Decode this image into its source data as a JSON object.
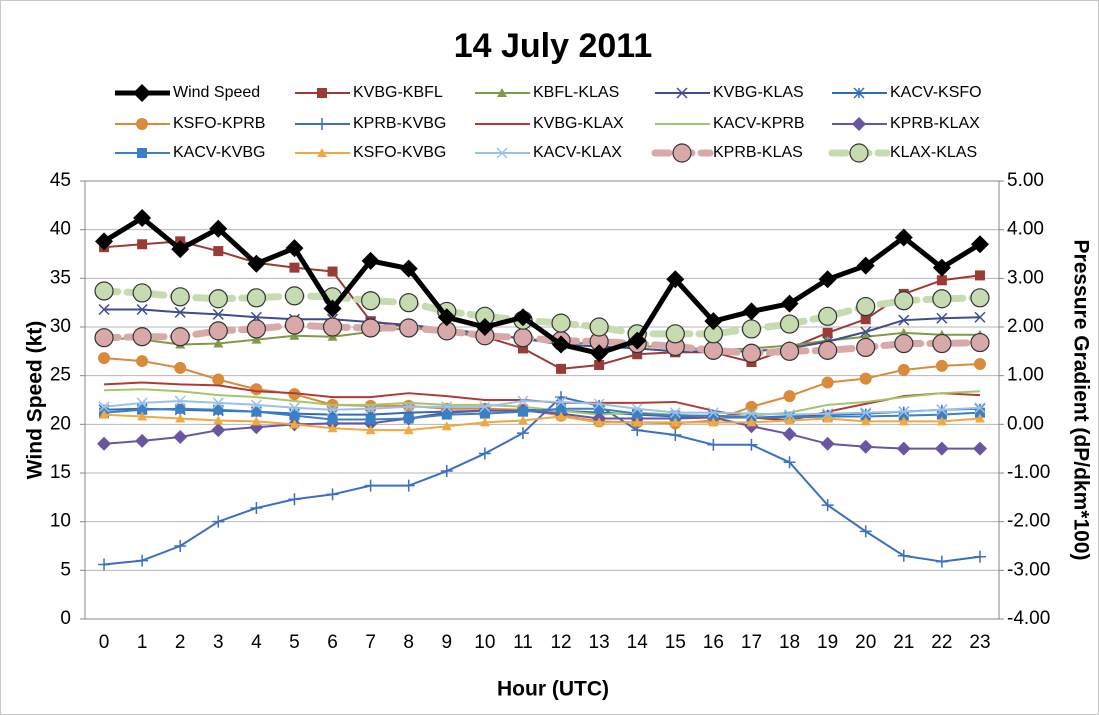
{
  "chart_data": {
    "type": "line",
    "title": "14 July 2011",
    "x_label": "Hour (UTC)",
    "y_label": "Wind Speed (kt)",
    "y2_label": "Pressure Gradient (dP/dkm*100)",
    "categories": [
      "0",
      "1",
      "2",
      "3",
      "4",
      "5",
      "6",
      "7",
      "8",
      "9",
      "10",
      "11",
      "12",
      "13",
      "14",
      "15",
      "16",
      "17",
      "18",
      "19",
      "20",
      "21",
      "22",
      "23"
    ],
    "ylim": [
      0,
      45
    ],
    "yticks": [
      0,
      5,
      10,
      15,
      20,
      25,
      30,
      35,
      40,
      45
    ],
    "y2lim": [
      -4,
      5
    ],
    "y2ticks": [
      {
        "value": 5,
        "label": "5.00"
      },
      {
        "value": 4,
        "label": "4.00"
      },
      {
        "value": 3,
        "label": "3.00"
      },
      {
        "value": 2,
        "label": "2.00"
      },
      {
        "value": 1,
        "label": "1.00"
      },
      {
        "value": 0,
        "label": "0.00"
      },
      {
        "value": -1,
        "label": "-1.00"
      },
      {
        "value": -2,
        "label": "-2.00"
      },
      {
        "value": -3,
        "label": "-3.00"
      },
      {
        "value": -4,
        "label": "-4.00"
      }
    ],
    "grid": true,
    "legend": "top",
    "series": [
      {
        "name": "Wind Speed",
        "color": "#000000",
        "marker": "diamond",
        "width": 5,
        "values": [
          38.8,
          41.2,
          38,
          40.1,
          36.5,
          38.1,
          31.9,
          36.8,
          36,
          31,
          30,
          31,
          28.2,
          27.3,
          28.6,
          34.9,
          30.6,
          31.6,
          32.4,
          34.9,
          36.3,
          39.2,
          36.1,
          38.5
        ]
      },
      {
        "name": "KVBG-KBFL",
        "color": "#9b3b36",
        "marker": "square",
        "width": 2,
        "axis": "y2",
        "values": [
          3.64,
          3.7,
          3.76,
          3.56,
          3.32,
          3.22,
          3.14,
          2.12,
          2.0,
          1.9,
          1.8,
          1.56,
          1.14,
          1.22,
          1.44,
          1.48,
          1.48,
          1.28,
          1.56,
          1.88,
          2.16,
          2.68,
          2.96,
          3.06
        ]
      },
      {
        "name": "KBFL-KLAS",
        "color": "#7f9a48",
        "marker": "triangle",
        "width": 2,
        "axis": "y2",
        "values": [
          1.78,
          1.74,
          1.64,
          1.66,
          1.74,
          1.82,
          1.8,
          1.9,
          1.98,
          1.92,
          1.82,
          1.78,
          1.66,
          1.68,
          1.6,
          1.6,
          1.52,
          1.56,
          1.62,
          1.72,
          1.8,
          1.88,
          1.84,
          1.84
        ]
      },
      {
        "name": "KVBG-KLAS",
        "color": "#3f4c8e",
        "marker": "x",
        "width": 2,
        "axis": "y2",
        "values": [
          2.36,
          2.36,
          2.3,
          2.26,
          2.2,
          2.16,
          2.16,
          2.1,
          2.04,
          1.96,
          1.86,
          1.76,
          1.64,
          1.6,
          1.56,
          1.5,
          1.5,
          1.5,
          1.56,
          1.7,
          1.9,
          2.14,
          2.18,
          2.2
        ]
      },
      {
        "name": "KACV-KSFO",
        "color": "#2e6db5",
        "marker": "asterisk",
        "width": 2,
        "axis": "y2",
        "values": [
          0.3,
          0.32,
          0.3,
          0.28,
          0.26,
          0.22,
          0.2,
          0.2,
          0.24,
          0.26,
          0.28,
          0.3,
          0.28,
          0.24,
          0.2,
          0.16,
          0.14,
          0.14,
          0.16,
          0.2,
          0.22,
          0.26,
          0.3,
          0.32
        ]
      },
      {
        "name": "KSFO-KPRB",
        "color": "#d98a3a",
        "marker": "circle",
        "width": 2,
        "axis": "y2",
        "values": [
          1.36,
          1.3,
          1.16,
          0.92,
          0.72,
          0.62,
          0.4,
          0.38,
          0.38,
          0.32,
          0.32,
          0.3,
          0.18,
          0.06,
          0.04,
          0.02,
          0.08,
          0.36,
          0.58,
          0.86,
          0.94,
          1.12,
          1.2,
          1.24
        ]
      },
      {
        "name": "KPRB-KVBG",
        "color": "#3b6fc0",
        "marker": "plus",
        "width": 2,
        "axis": "y2",
        "values": [
          -2.88,
          -2.8,
          -2.5,
          -2.0,
          -1.72,
          -1.54,
          -1.44,
          -1.26,
          -1.26,
          -0.96,
          -0.6,
          -0.18,
          0.56,
          0.38,
          -0.12,
          -0.22,
          -0.42,
          -0.42,
          -0.78,
          -1.66,
          -2.2,
          -2.7,
          -2.82,
          -2.72
        ]
      },
      {
        "name": "KVBG-KLAX",
        "color": "#b03a36",
        "marker": "none",
        "width": 2,
        "axis": "y2",
        "values": [
          0.82,
          0.86,
          0.82,
          0.8,
          0.68,
          0.64,
          0.56,
          0.56,
          0.64,
          0.58,
          0.5,
          0.5,
          0.44,
          0.44,
          0.44,
          0.46,
          0.28,
          0.14,
          0.08,
          0.26,
          0.42,
          0.58,
          0.64,
          0.6
        ]
      },
      {
        "name": "KACV-KPRB",
        "color": "#a6c46a",
        "marker": "none",
        "width": 2,
        "axis": "y2",
        "values": [
          0.7,
          0.72,
          0.68,
          0.6,
          0.56,
          0.48,
          0.4,
          0.4,
          0.44,
          0.4,
          0.4,
          0.36,
          0.28,
          0.2,
          0.24,
          0.2,
          0.16,
          0.18,
          0.24,
          0.4,
          0.46,
          0.56,
          0.64,
          0.68
        ]
      },
      {
        "name": "KPRB-KLAX",
        "color": "#6a55a0",
        "marker": "diamond",
        "width": 2,
        "axis": "y2",
        "values": [
          -0.4,
          -0.34,
          -0.26,
          -0.12,
          -0.06,
          0,
          0.02,
          0.02,
          0.12,
          0.24,
          0.28,
          0.28,
          0.22,
          0.12,
          0.12,
          0.12,
          0.14,
          -0.04,
          -0.2,
          -0.4,
          -0.46,
          -0.5,
          -0.5,
          -0.5
        ]
      },
      {
        "name": "KACV-KVBG",
        "color": "#3b7fc4",
        "marker": "square",
        "width": 2,
        "axis": "y2",
        "values": [
          0.24,
          0.3,
          0.32,
          0.3,
          0.26,
          0.18,
          0.1,
          0.1,
          0.12,
          0.2,
          0.22,
          0.26,
          0.32,
          0.32,
          0.22,
          0.18,
          0.18,
          0.14,
          0.14,
          0.16,
          0.16,
          0.18,
          0.2,
          0.24
        ]
      },
      {
        "name": "KSFO-KVBG",
        "color": "#f0a840",
        "marker": "triangle",
        "width": 2,
        "axis": "y2",
        "values": [
          0.2,
          0.16,
          0.12,
          0.08,
          0.06,
          0,
          -0.08,
          -0.12,
          -0.12,
          -0.04,
          0.04,
          0.08,
          0.16,
          0.04,
          0.04,
          0.04,
          0.04,
          0.04,
          0.08,
          0.12,
          0.06,
          0.06,
          0.06,
          0.12
        ]
      },
      {
        "name": "KACV-KLAX",
        "color": "#9cc0e8",
        "marker": "x",
        "width": 2,
        "axis": "y2",
        "values": [
          0.36,
          0.44,
          0.48,
          0.44,
          0.4,
          0.34,
          0.3,
          0.32,
          0.36,
          0.36,
          0.36,
          0.48,
          0.46,
          0.42,
          0.32,
          0.24,
          0.24,
          0.22,
          0.2,
          0.22,
          0.24,
          0.26,
          0.3,
          0.34
        ]
      },
      {
        "name": "KPRB-KLAS",
        "color": "#d9a9a9",
        "marker": "circle",
        "width": 7,
        "dash": true,
        "axis": "y2",
        "values": [
          1.78,
          1.8,
          1.8,
          1.92,
          1.96,
          2.04,
          2.0,
          1.98,
          1.98,
          1.92,
          1.82,
          1.78,
          1.72,
          1.7,
          1.66,
          1.6,
          1.52,
          1.46,
          1.5,
          1.52,
          1.58,
          1.66,
          1.66,
          1.68
        ]
      },
      {
        "name": "KLAX-KLAS",
        "color": "#c6dcb0",
        "marker": "circle",
        "width": 7,
        "dash": true,
        "axis": "y2",
        "values": [
          2.74,
          2.7,
          2.62,
          2.58,
          2.6,
          2.64,
          2.62,
          2.54,
          2.5,
          2.32,
          2.22,
          2.14,
          2.08,
          2.0,
          1.86,
          1.86,
          1.86,
          1.96,
          2.06,
          2.22,
          2.42,
          2.54,
          2.58,
          2.6
        ]
      }
    ]
  }
}
